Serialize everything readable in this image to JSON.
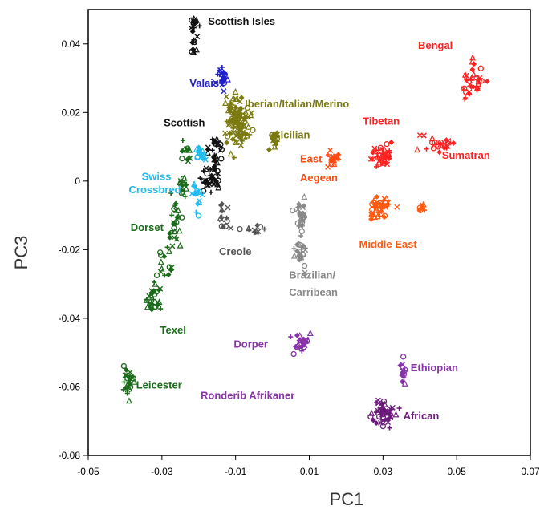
{
  "chart_data": {
    "type": "scatter",
    "title": "",
    "xlabel": "PC1",
    "ylabel": "PC3",
    "xlim": [
      -0.05,
      0.07
    ],
    "ylim": [
      -0.08,
      0.05
    ],
    "x_ticks": [
      "-0.05",
      "-0.03",
      "-0.01",
      "0.01",
      "0.03",
      "0.05",
      "0.07"
    ],
    "y_ticks": [
      "0.04",
      "0.02",
      "0",
      "-0.02",
      "-0.04",
      "-0.06",
      "-0.08"
    ],
    "grid": false,
    "legend": "none",
    "groups": [
      {
        "label": "Scottish Isles",
        "color": "#111111",
        "label_x": -0.0175,
        "label_y": 0.0455,
        "clusters": [
          [
            -0.0215,
            0.046,
            0.001,
            0.002,
            14
          ],
          [
            -0.021,
            0.04,
            0.0007,
            0.004,
            10
          ]
        ]
      },
      {
        "label": "Valais",
        "color": "#2020cc",
        "label_x": -0.0225,
        "label_y": 0.0275,
        "clusters": [
          [
            -0.0135,
            0.03,
            0.0012,
            0.0025,
            24
          ]
        ]
      },
      {
        "label": "Iberian/Italian/Merino",
        "color": "#7a7a10",
        "label_x": -0.0075,
        "label_y": 0.0215,
        "clusters": [
          [
            -0.0095,
            0.018,
            0.0025,
            0.006,
            120
          ]
        ]
      },
      {
        "label": "Sicilian",
        "color": "#7a7a10",
        "label_x": 0.0003,
        "label_y": 0.0125,
        "clusters": [
          [
            0.0005,
            0.0115,
            0.0012,
            0.0025,
            16
          ]
        ]
      },
      {
        "label": "Scottish",
        "color": "#111111",
        "label_x": -0.0295,
        "label_y": 0.016,
        "clusters": [
          [
            -0.0155,
            0.009,
            0.002,
            0.004,
            30
          ],
          [
            -0.0165,
            0.0,
            0.0022,
            0.003,
            30
          ]
        ]
      },
      {
        "label": "Swiss",
        "color": "#22bbee",
        "label_x": -0.0355,
        "label_y": 0.0003,
        "clusters": [
          [
            -0.0195,
            0.008,
            0.0012,
            0.002,
            16
          ],
          [
            -0.021,
            -0.005,
            0.0012,
            0.004,
            16
          ]
        ]
      },
      {
        "label": "Crossbred",
        "color": "#22bbee",
        "label_x": -0.039,
        "label_y": -0.0035,
        "clusters": []
      },
      {
        "label": "Dorset",
        "color": "#1a6b1a",
        "label_x": -0.0385,
        "label_y": -0.0145,
        "clusters": [
          [
            -0.0235,
            0.008,
            0.0012,
            0.003,
            14
          ],
          [
            -0.0245,
            -0.001,
            0.0012,
            0.0035,
            14
          ],
          [
            -0.0265,
            -0.012,
            0.0015,
            0.006,
            24
          ]
        ]
      },
      {
        "label": "Texel",
        "color": "#1a6b1a",
        "label_x": -0.0305,
        "label_y": -0.0445,
        "clusters": [
          [
            -0.029,
            -0.025,
            0.0015,
            0.004,
            14
          ],
          [
            -0.032,
            -0.035,
            0.002,
            0.005,
            30
          ]
        ]
      },
      {
        "label": "Leicester",
        "color": "#1a6b1a",
        "label_x": -0.037,
        "label_y": -0.0605,
        "clusters": [
          [
            -0.0395,
            -0.058,
            0.0014,
            0.003,
            24
          ]
        ]
      },
      {
        "label": "Creole",
        "color": "#555555",
        "label_x": -0.0145,
        "label_y": -0.0215,
        "clusters": [
          [
            -0.0135,
            -0.009,
            0.0015,
            0.0045,
            14
          ],
          [
            -0.0055,
            -0.014,
            0.0025,
            0.0012,
            10
          ]
        ]
      },
      {
        "label": "Brazilian/",
        "color": "#888888",
        "label_x": 0.0045,
        "label_y": -0.0285,
        "clusters": [
          [
            0.008,
            -0.0105,
            0.0012,
            0.0045,
            30
          ],
          [
            0.0075,
            -0.02,
            0.0015,
            0.0035,
            20
          ]
        ]
      },
      {
        "label": "Carribean",
        "color": "#888888",
        "label_x": 0.0045,
        "label_y": -0.0335,
        "clusters": []
      },
      {
        "label": "Bengal",
        "color": "#ff2020",
        "label_x": 0.0395,
        "label_y": 0.0385,
        "clusters": [
          [
            0.0545,
            0.0285,
            0.0025,
            0.005,
            36
          ]
        ]
      },
      {
        "label": "Tibetan",
        "color": "#ff2020",
        "label_x": 0.0245,
        "label_y": 0.0165,
        "clusters": [
          [
            0.0295,
            0.0075,
            0.0025,
            0.0025,
            40
          ]
        ]
      },
      {
        "label": "Sumatran",
        "color": "#ff2020",
        "label_x": 0.046,
        "label_y": 0.0065,
        "clusters": [
          [
            0.0445,
            0.0115,
            0.0035,
            0.0025,
            24
          ]
        ]
      },
      {
        "label": "East",
        "color": "#ff4a10",
        "label_x": 0.0075,
        "label_y": 0.0055,
        "clusters": [
          [
            0.0165,
            0.0065,
            0.0012,
            0.002,
            18
          ]
        ]
      },
      {
        "label": "Aegean",
        "color": "#ff4a10",
        "label_x": 0.0075,
        "label_y": 0.0,
        "clusters": []
      },
      {
        "label": "Middle East",
        "color": "#ff5a10",
        "label_x": 0.0235,
        "label_y": -0.0195,
        "clusters": [
          [
            0.029,
            -0.0075,
            0.0025,
            0.003,
            44
          ],
          [
            0.041,
            -0.0075,
            0.0015,
            0.0012,
            10
          ]
        ]
      },
      {
        "label": "Dorper",
        "color": "#8833aa",
        "label_x": -0.0105,
        "label_y": -0.0485,
        "clusters": [
          [
            0.0075,
            -0.047,
            0.0025,
            0.0025,
            24
          ]
        ]
      },
      {
        "label": "Ethiopian",
        "color": "#8833aa",
        "label_x": 0.0375,
        "label_y": -0.0555,
        "clusters": [
          [
            0.0355,
            -0.0565,
            0.0008,
            0.003,
            14
          ]
        ]
      },
      {
        "label": "Ronderib Afrikaner",
        "color": "#8833aa",
        "label_x": -0.0195,
        "label_y": -0.0635,
        "clusters": []
      },
      {
        "label": "African",
        "color": "#6b1a7a",
        "label_x": 0.0355,
        "label_y": -0.0695,
        "clusters": [
          [
            0.03,
            -0.068,
            0.0025,
            0.0035,
            46
          ]
        ]
      }
    ]
  }
}
